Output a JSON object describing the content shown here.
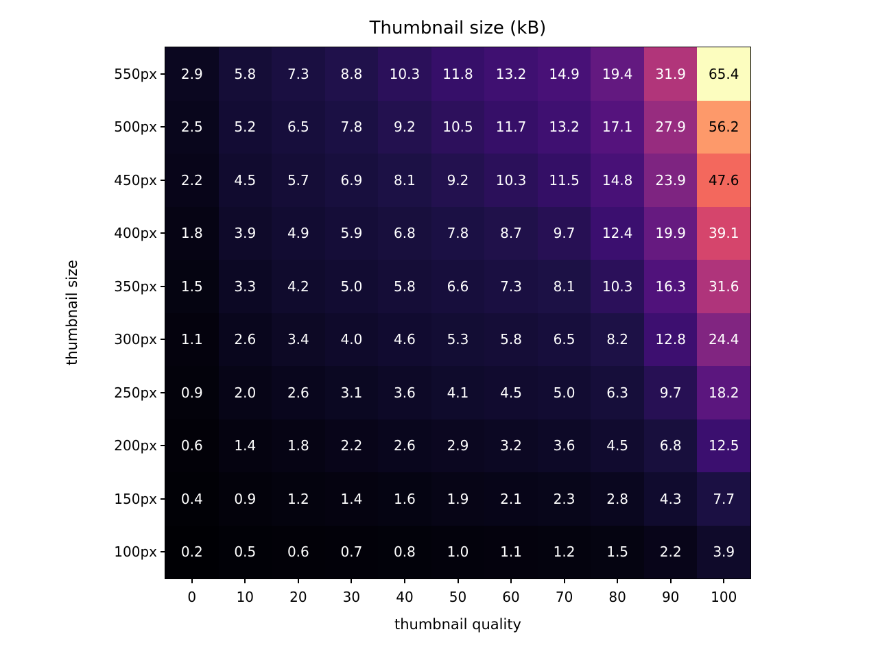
{
  "chart_data": {
    "type": "heatmap",
    "title": "Thumbnail size (kB)",
    "xlabel": "thumbnail quality",
    "ylabel": "thumbnail size",
    "x_ticks": [
      "0",
      "10",
      "20",
      "30",
      "40",
      "50",
      "60",
      "70",
      "80",
      "90",
      "100"
    ],
    "y_ticks": [
      "550px",
      "500px",
      "450px",
      "400px",
      "350px",
      "300px",
      "250px",
      "200px",
      "150px",
      "100px"
    ],
    "rows": [
      {
        "label": "550px",
        "values": [
          2.9,
          5.8,
          7.3,
          8.8,
          10.3,
          11.8,
          13.2,
          14.9,
          19.4,
          31.9,
          65.4
        ]
      },
      {
        "label": "500px",
        "values": [
          2.5,
          5.2,
          6.5,
          7.8,
          9.2,
          10.5,
          11.7,
          13.2,
          17.1,
          27.9,
          56.2
        ]
      },
      {
        "label": "450px",
        "values": [
          2.2,
          4.5,
          5.7,
          6.9,
          8.1,
          9.2,
          10.3,
          11.5,
          14.8,
          23.9,
          47.6
        ]
      },
      {
        "label": "400px",
        "values": [
          1.8,
          3.9,
          4.9,
          5.9,
          6.8,
          7.8,
          8.7,
          9.7,
          12.4,
          19.9,
          39.1
        ]
      },
      {
        "label": "350px",
        "values": [
          1.5,
          3.3,
          4.2,
          5.0,
          5.8,
          6.6,
          7.3,
          8.1,
          10.3,
          16.3,
          31.6
        ]
      },
      {
        "label": "300px",
        "values": [
          1.1,
          2.6,
          3.4,
          4.0,
          4.6,
          5.3,
          5.8,
          6.5,
          8.2,
          12.8,
          24.4
        ]
      },
      {
        "label": "250px",
        "values": [
          0.9,
          2.0,
          2.6,
          3.1,
          3.6,
          4.1,
          4.5,
          5.0,
          6.3,
          9.7,
          18.2
        ]
      },
      {
        "label": "200px",
        "values": [
          0.6,
          1.4,
          1.8,
          2.2,
          2.6,
          2.9,
          3.2,
          3.6,
          4.5,
          6.8,
          12.5
        ]
      },
      {
        "label": "150px",
        "values": [
          0.4,
          0.9,
          1.2,
          1.4,
          1.6,
          1.9,
          2.1,
          2.3,
          2.8,
          4.3,
          7.7
        ]
      },
      {
        "label": "100px",
        "values": [
          0.2,
          0.5,
          0.6,
          0.7,
          0.8,
          1.0,
          1.1,
          1.2,
          1.5,
          2.2,
          3.9
        ]
      }
    ],
    "vmin": 0.2,
    "vmax": 65.4,
    "value_decimals": 1,
    "colormap_name": "magma",
    "colormap_stops": [
      "#000004",
      "#100b2e",
      "#1d1147",
      "#3b0f6f",
      "#51127c",
      "#6a1c81",
      "#832681",
      "#9c2e7f",
      "#b73779",
      "#cb4071",
      "#dd4968",
      "#ec5a60",
      "#f7705c",
      "#fc8961",
      "#fe9f6d",
      "#feba80",
      "#fcfdbf"
    ],
    "annotation_color_on_dark": "#ffffff",
    "annotation_color_on_light": "#000000",
    "annotation_dark_threshold": 0.65,
    "axis_text_color": "#000000",
    "background_color": "#ffffff",
    "grid": false,
    "legend": "none"
  }
}
